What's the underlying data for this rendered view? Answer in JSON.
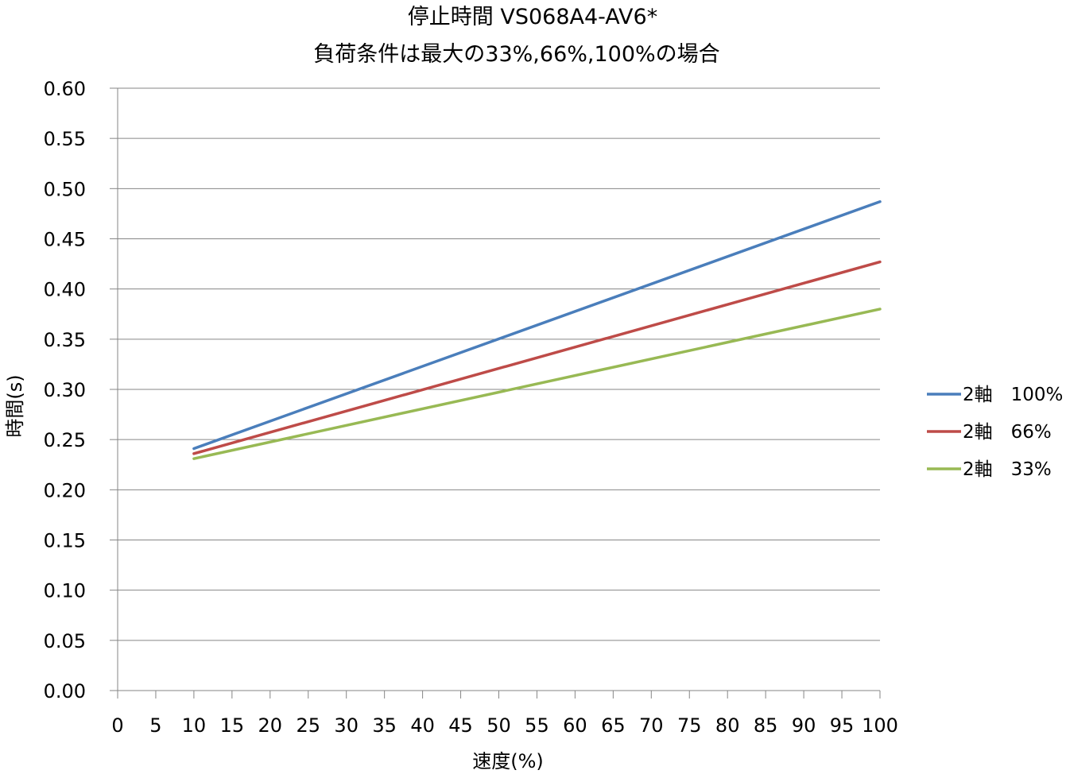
{
  "chart_data": {
    "type": "line",
    "title": "停止時間 VS068A4-AV6*",
    "subtitle": "負荷条件は最大の33%,66%,100%の場合",
    "xlabel": "速度(%)",
    "ylabel": "時間(s)",
    "xlim": [
      0,
      100
    ],
    "ylim": [
      0,
      0.6
    ],
    "x_ticks": [
      "0",
      "5",
      "10",
      "15",
      "20",
      "25",
      "30",
      "35",
      "40",
      "45",
      "50",
      "55",
      "60",
      "65",
      "70",
      "75",
      "80",
      "85",
      "90",
      "95",
      "100"
    ],
    "y_ticks": [
      "0.00",
      "0.05",
      "0.10",
      "0.15",
      "0.20",
      "0.25",
      "0.30",
      "0.35",
      "0.40",
      "0.45",
      "0.50",
      "0.55",
      "0.60"
    ],
    "grid": "horizontal",
    "legend_position": "right",
    "series": [
      {
        "name": "2軸　100%",
        "color": "#4a7ebb",
        "x": [
          10,
          100
        ],
        "y": [
          0.241,
          0.487
        ]
      },
      {
        "name": "2軸　66%",
        "color": "#be4b48",
        "x": [
          10,
          100
        ],
        "y": [
          0.236,
          0.427
        ]
      },
      {
        "name": "2軸　33%",
        "color": "#98b954",
        "x": [
          10,
          100
        ],
        "y": [
          0.231,
          0.38
        ]
      }
    ]
  }
}
